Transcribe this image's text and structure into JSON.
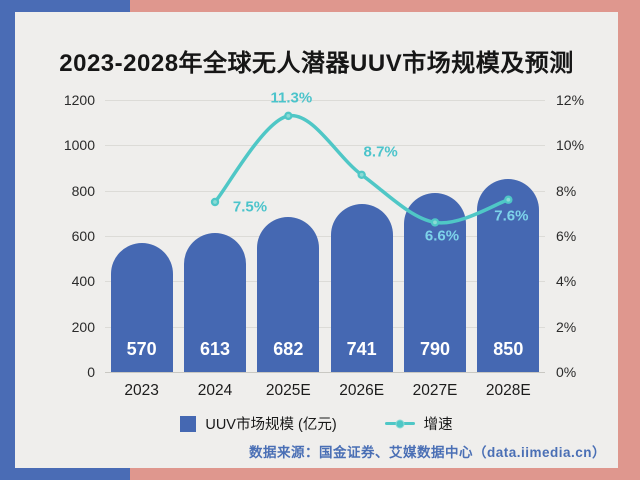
{
  "colors": {
    "bg_left": "#4a6cb5",
    "bg_right": "#df978e",
    "card": "#efeeec",
    "bar": "#4568b2",
    "line": "#4fc7c6",
    "line_dot_inner": "#8adbd5",
    "pct_label": "#4cc4cb",
    "pct_label_on_bar": "#7dd3ea",
    "grid": "#dcdbd7",
    "source_text": "#4a6fb5"
  },
  "chart_data": {
    "type": "bar",
    "title": "2023-2028年全球无人潜器UUV市场规模及预测",
    "categories": [
      "2023",
      "2024",
      "2025E",
      "2026E",
      "2027E",
      "2028E"
    ],
    "series": [
      {
        "name": "UUV市场规模 (亿元)",
        "type": "bar",
        "axis": "left",
        "values": [
          570,
          613,
          682,
          741,
          790,
          850
        ]
      },
      {
        "name": "增速",
        "type": "line",
        "axis": "right",
        "values": [
          null,
          7.5,
          11.3,
          8.7,
          6.6,
          7.6
        ],
        "labels": [
          "",
          "7.5%",
          "11.3%",
          "8.7%",
          "6.6%",
          "7.6%"
        ]
      }
    ],
    "left_axis": {
      "min": 0,
      "max": 1200,
      "ticks": [
        "1200",
        "1000",
        "800",
        "600",
        "400",
        "200",
        "0"
      ]
    },
    "right_axis": {
      "min": 0,
      "max": 12,
      "ticks": [
        "12%",
        "10%",
        "8%",
        "6%",
        "4%",
        "2%",
        "0%"
      ]
    },
    "grid": true,
    "legend_position": "bottom"
  },
  "source": "数据来源：国金证券、艾媒数据中心（data.iimedia.cn）"
}
